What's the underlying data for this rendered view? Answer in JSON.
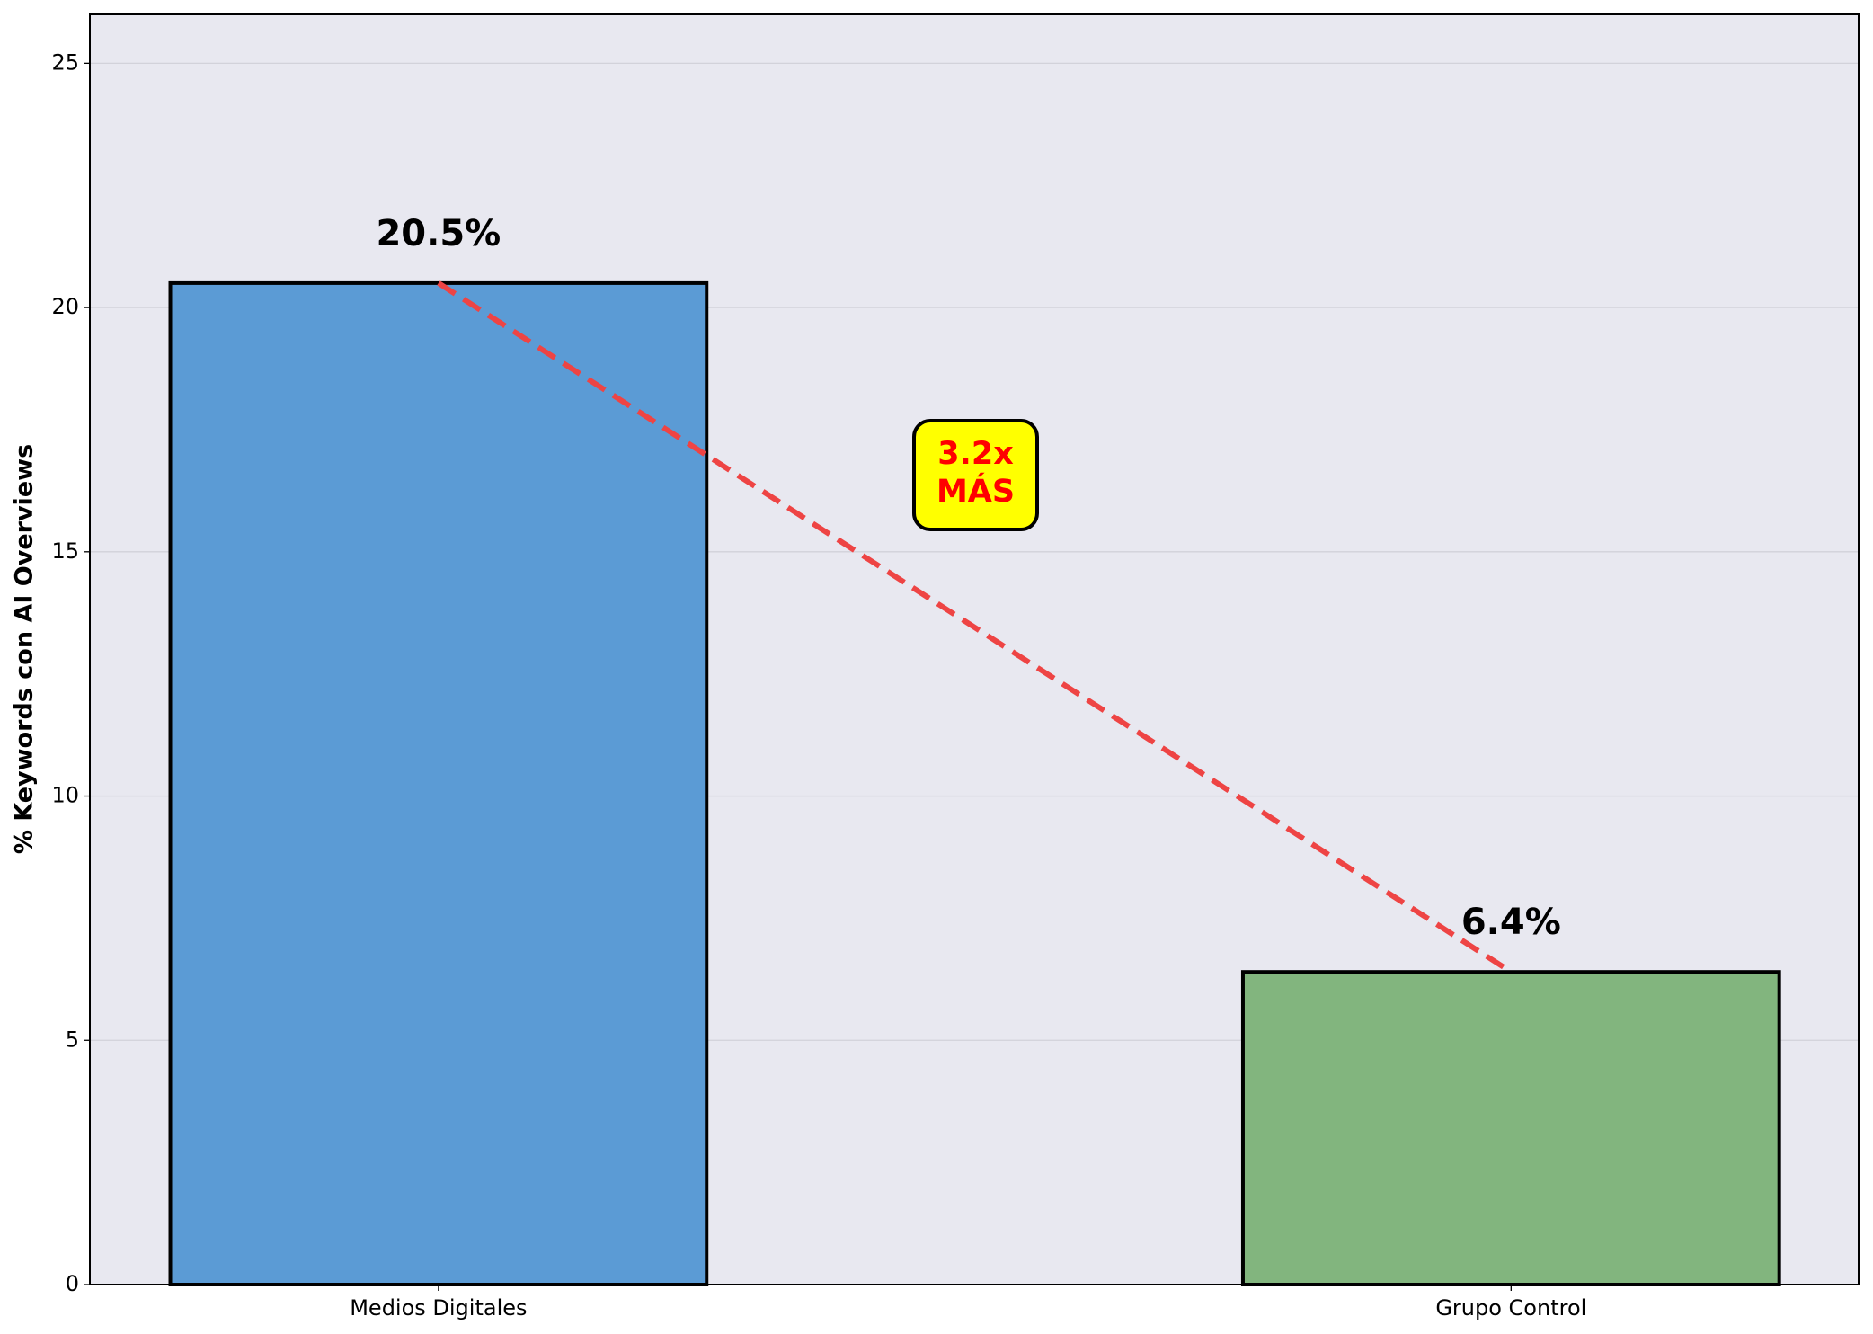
{
  "chart_data": {
    "type": "bar",
    "y_label": "% Keywords con AI Overviews",
    "categories": [
      "Medios Digitales",
      "Grupo Control"
    ],
    "values": [
      20.5,
      6.4
    ],
    "value_labels": [
      "20.5%",
      "6.4%"
    ],
    "colors": [
      "#5b9bd5",
      "#82b57e"
    ],
    "ylim": [
      0,
      26
    ],
    "yticks": [
      0,
      5,
      10,
      15,
      20,
      25
    ],
    "grid": true,
    "annotation": [
      "3.2x",
      "MÁS"
    ]
  }
}
